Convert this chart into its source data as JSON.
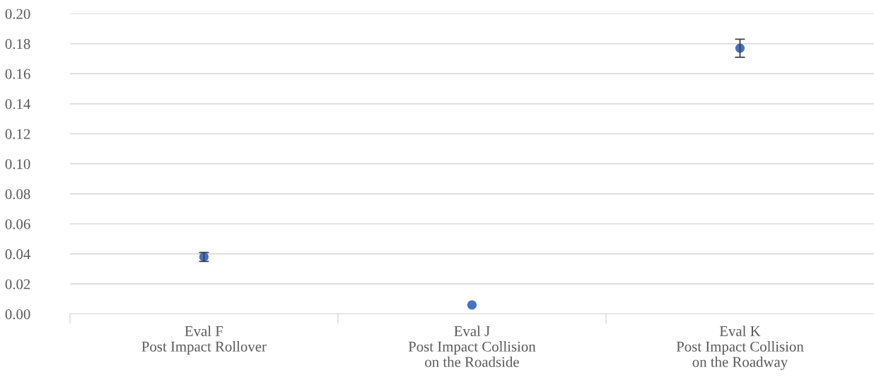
{
  "chart_data": {
    "type": "scatter",
    "categories": [
      "Eval F\nPost Impact Rollover",
      "Eval J\nPost Impact Collision\non the Roadside",
      "Eval K\nPost Impact Collision\non the Roadway"
    ],
    "values": [
      0.038,
      0.006,
      0.177
    ],
    "errors": [
      0.003,
      null,
      0.006
    ],
    "color": "#4472c4",
    "marker": "circle",
    "ylim": [
      0,
      0.2
    ],
    "yticks": [
      {
        "value": 0,
        "label": "0.00"
      },
      {
        "value": 0.02,
        "label": "0.02"
      },
      {
        "value": 0.04,
        "label": "0.04"
      },
      {
        "value": 0.06,
        "label": "0.06"
      },
      {
        "value": 0.08,
        "label": "0.08"
      },
      {
        "value": 0.1,
        "label": "0.10"
      },
      {
        "value": 0.12,
        "label": "0.12"
      },
      {
        "value": 0.14,
        "label": "0.14"
      },
      {
        "value": 0.16,
        "label": "0.16"
      },
      {
        "value": 0.18,
        "label": "0.18"
      },
      {
        "value": 0.2,
        "label": "0.20"
      }
    ],
    "grid": "y"
  }
}
